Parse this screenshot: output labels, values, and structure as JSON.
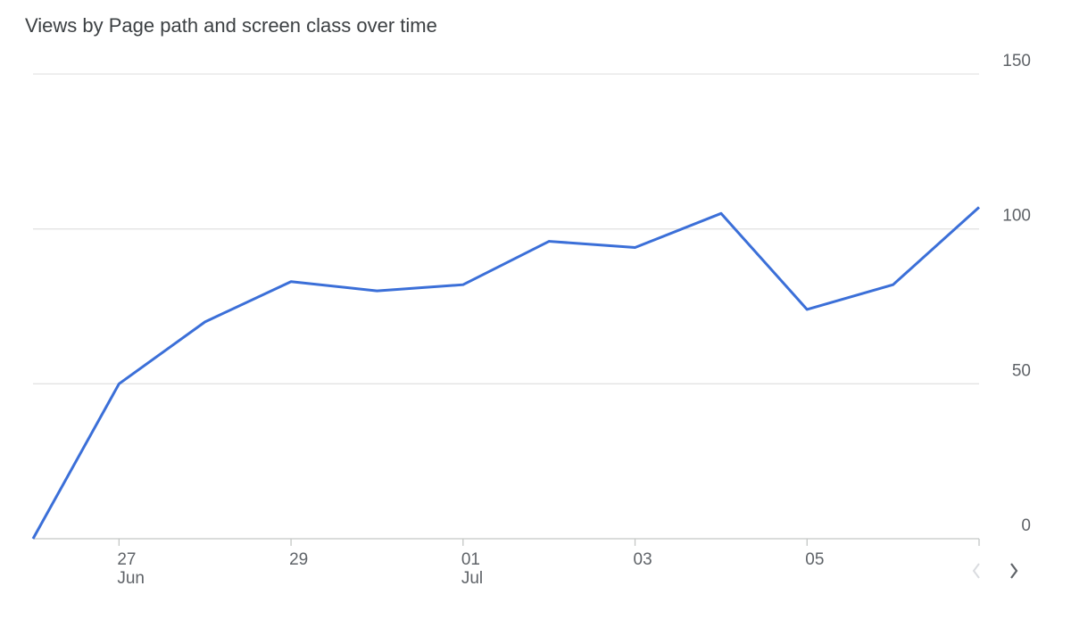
{
  "chart_data": {
    "type": "line",
    "title": "Views by Page path and screen class over time",
    "categories": [
      null,
      "27",
      null,
      "29",
      null,
      "01",
      null,
      "03",
      null,
      "05",
      null,
      null
    ],
    "x_sublabels": [
      null,
      "Jun",
      null,
      null,
      null,
      "Jul",
      null,
      null,
      null,
      null,
      null,
      null
    ],
    "values": [
      0,
      50,
      70,
      83,
      80,
      82,
      96,
      94,
      105,
      74,
      82,
      107
    ],
    "color": "#3b6fd8",
    "ylim": [
      0,
      150
    ],
    "yticks": [
      0,
      50,
      100,
      150
    ],
    "grid": true,
    "y_axis_side": "right"
  }
}
